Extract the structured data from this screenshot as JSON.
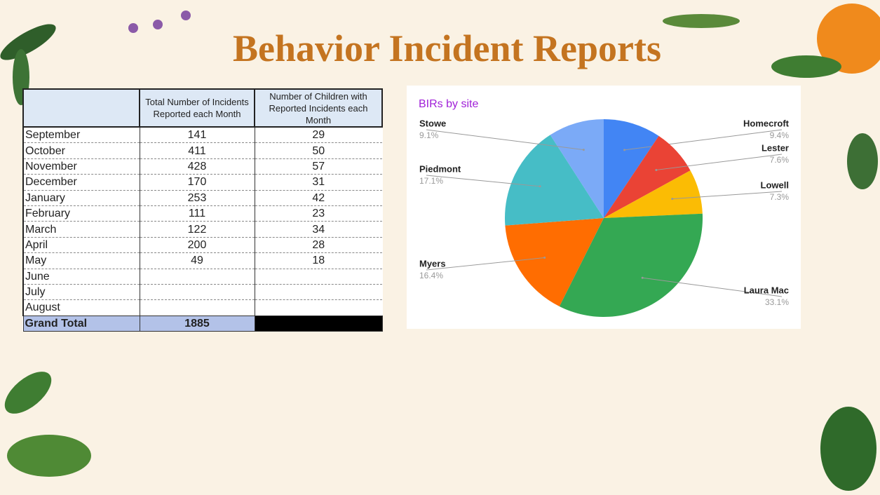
{
  "title": "Behavior Incident Reports",
  "table": {
    "headers": [
      "Total Number of Incidents Reported each Month",
      "Number of Children with Reported Incidents each Month"
    ],
    "rows": [
      {
        "month": "September",
        "incidents": 141,
        "children": 29
      },
      {
        "month": "October",
        "incidents": 411,
        "children": 50
      },
      {
        "month": "November",
        "incidents": 428,
        "children": 57
      },
      {
        "month": "December",
        "incidents": 170,
        "children": 31
      },
      {
        "month": "January",
        "incidents": 253,
        "children": 42
      },
      {
        "month": "February",
        "incidents": 111,
        "children": 23
      },
      {
        "month": "March",
        "incidents": 122,
        "children": 34
      },
      {
        "month": "April",
        "incidents": 200,
        "children": 28
      },
      {
        "month": "May",
        "incidents": 49,
        "children": 18
      },
      {
        "month": "June"
      },
      {
        "month": "July"
      },
      {
        "month": "August"
      }
    ],
    "total": {
      "label": "Grand Total",
      "incidents": 1885
    }
  },
  "chart_data": {
    "type": "pie",
    "title": "BIRs by site",
    "categories": [
      "Homecroft",
      "Lester",
      "Lowell",
      "Laura Mac",
      "Myers",
      "Piedmont",
      "Stowe"
    ],
    "values": [
      9.4,
      7.6,
      7.3,
      33.1,
      16.4,
      17.1,
      9.1
    ],
    "value_labels": [
      "9.4%",
      "7.6%",
      "7.3%",
      "33.1%",
      "16.4%",
      "17.1%",
      "9.1%"
    ],
    "colors": [
      "#4285f4",
      "#ea4335",
      "#fbbc04",
      "#34a853",
      "#ff6d01",
      "#46bdc6",
      "#7baaf7"
    ]
  }
}
